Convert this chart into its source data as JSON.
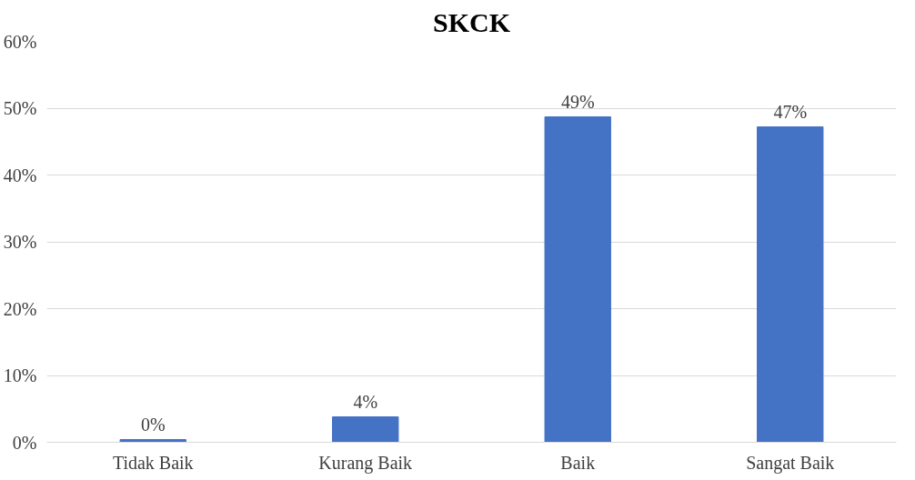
{
  "chart_data": {
    "type": "bar",
    "title": "SKCK",
    "categories": [
      "Tidak Baik",
      "Kurang Baik",
      "Baik",
      "Sangat Baik"
    ],
    "values": [
      0.4,
      3.8,
      48.7,
      47.2
    ],
    "color": "#4472c4",
    "value_labels": [
      "0%",
      "4%",
      "49%",
      "47%"
    ],
    "ylim": [
      0,
      60
    ],
    "yticks": [
      {
        "value": 0,
        "label": "0%"
      },
      {
        "value": 10,
        "label": "10%"
      },
      {
        "value": 20,
        "label": "20%"
      },
      {
        "value": 30,
        "label": "30%"
      },
      {
        "value": 40,
        "label": "40%"
      },
      {
        "value": 50,
        "label": "50%"
      },
      {
        "value": 60,
        "label": "60%"
      }
    ],
    "grid": "y"
  }
}
